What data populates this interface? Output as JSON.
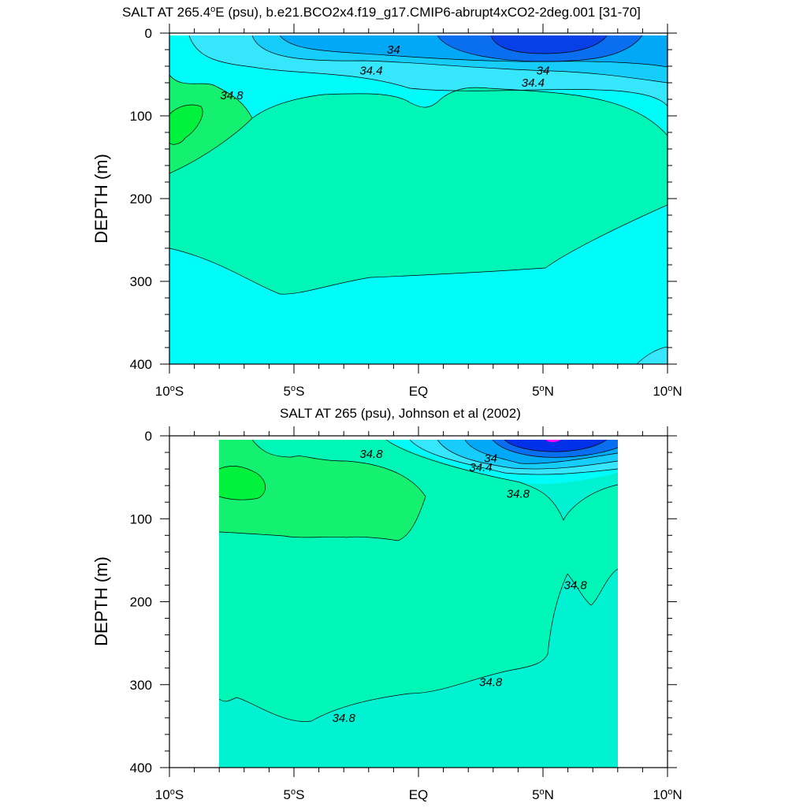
{
  "colors": {
    "s33": "#0640e6",
    "s335": "#0a6ef0",
    "s34": "#00a8f6",
    "s342": "#16cdfa",
    "s344": "#36e6fb",
    "s346": "#00fcf8",
    "s348": "#00f6b6",
    "s35": "#14f070",
    "s352": "#00f23c",
    "johnson_deep": "#00f2d2",
    "johnson_top": "#0030e8",
    "johnson_magenta": "#ff00ff"
  },
  "chart_data": [
    {
      "type": "contour",
      "title": "SALT AT 265.4",
      "title_unit_sup": "o",
      "title_rest": "E (psu), b.e21.BCO2x4.f19_g17.CMIP6-abrupt4xCO2-2deg.001 [31-70]",
      "ylabel": "DEPTH (m)",
      "xlim": [
        -10,
        10
      ],
      "ylim": [
        400,
        0
      ],
      "xticks": [
        {
          "value": -10,
          "num": "10",
          "sup": "o",
          "hem": "S"
        },
        {
          "value": -5,
          "num": "5",
          "sup": "o",
          "hem": "S"
        },
        {
          "value": 0,
          "num": "EQ",
          "sup": "",
          "hem": ""
        },
        {
          "value": 5,
          "num": "5",
          "sup": "o",
          "hem": "N"
        },
        {
          "value": 10,
          "num": "10",
          "sup": "o",
          "hem": "N"
        }
      ],
      "yticks": [
        0,
        100,
        200,
        300,
        400
      ],
      "contour_labels": [
        {
          "text": "34",
          "x": -1.0,
          "y": 20
        },
        {
          "text": "34.4",
          "x": -1.9,
          "y": 45
        },
        {
          "text": "34",
          "x": 5.0,
          "y": 45
        },
        {
          "text": "34.4",
          "x": 4.6,
          "y": 60
        },
        {
          "text": "34.8",
          "x": -7.5,
          "y": 75
        }
      ],
      "data_extent": {
        "lat": [
          -10,
          10
        ],
        "depth": [
          5,
          400
        ]
      }
    },
    {
      "type": "contour",
      "title": "SALT AT 265 (psu), Johnson et al (2002)",
      "ylabel": "DEPTH (m)",
      "xlim": [
        -10,
        10
      ],
      "ylim": [
        400,
        0
      ],
      "xticks": [
        {
          "value": -10,
          "num": "10",
          "sup": "o",
          "hem": "S"
        },
        {
          "value": -5,
          "num": "5",
          "sup": "o",
          "hem": "S"
        },
        {
          "value": 0,
          "num": "EQ",
          "sup": "",
          "hem": ""
        },
        {
          "value": 5,
          "num": "5",
          "sup": "o",
          "hem": "N"
        },
        {
          "value": 10,
          "num": "10",
          "sup": "o",
          "hem": "N"
        }
      ],
      "yticks": [
        0,
        100,
        200,
        300,
        400
      ],
      "contour_labels": [
        {
          "text": "34.8",
          "x": -1.9,
          "y": 22
        },
        {
          "text": "34",
          "x": 2.9,
          "y": 27
        },
        {
          "text": "34.4",
          "x": 2.5,
          "y": 38
        },
        {
          "text": "34.8",
          "x": 4.0,
          "y": 70
        },
        {
          "text": "34.8",
          "x": 6.3,
          "y": 180
        },
        {
          "text": "34.8",
          "x": 2.9,
          "y": 297
        },
        {
          "text": "34.8",
          "x": -3.0,
          "y": 340
        }
      ],
      "data_extent": {
        "lat": [
          -8,
          8
        ],
        "depth": [
          5,
          400
        ]
      }
    }
  ]
}
